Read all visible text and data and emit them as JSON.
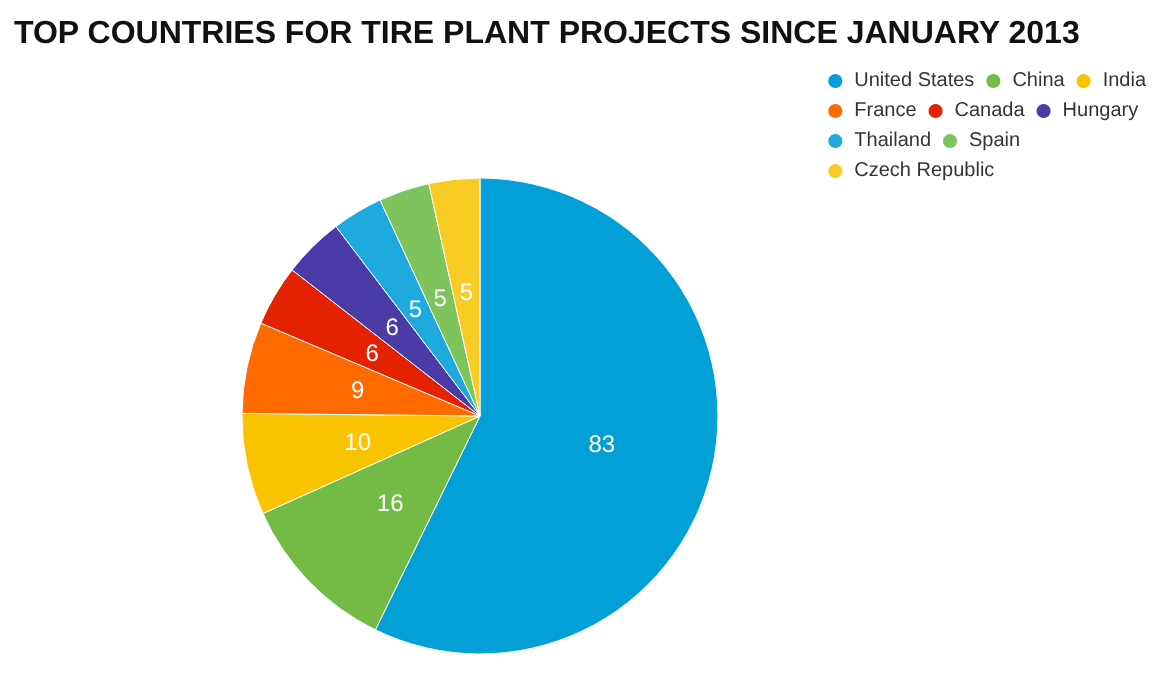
{
  "chart_data": {
    "type": "pie",
    "title": "TOP COUNTRIES FOR TIRE PLANT PROJECTS SINCE JANUARY 2013",
    "categories": [
      "United States",
      "China",
      "India",
      "France",
      "Canada",
      "Hungary",
      "Thailand",
      "Spain",
      "Czech Republic"
    ],
    "values": [
      83,
      16,
      10,
      9,
      6,
      6,
      5,
      5,
      5
    ],
    "colors": [
      "#03a0d8",
      "#73bb45",
      "#f9c300",
      "#fe6a00",
      "#e42200",
      "#4b3ba7",
      "#1eaadc",
      "#7dc45c",
      "#f8cc25"
    ],
    "data_labels": true,
    "legend": "top right"
  }
}
